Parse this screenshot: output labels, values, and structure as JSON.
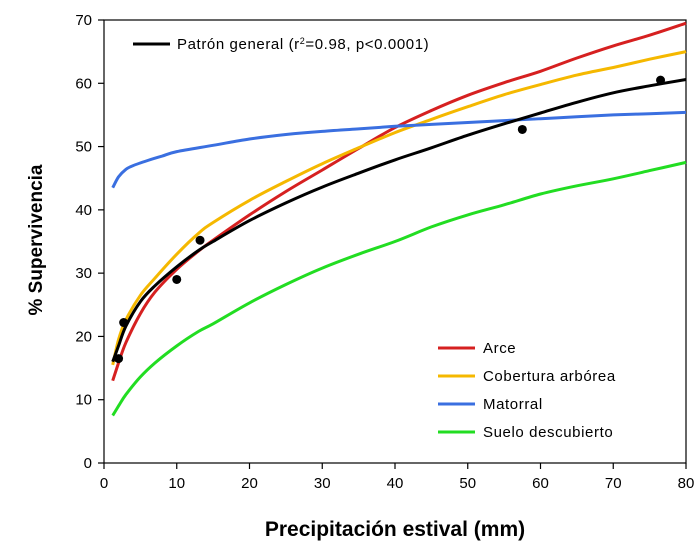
{
  "chart_data": {
    "type": "line",
    "title": "",
    "xlabel": "Precipitación estival (mm)",
    "ylabel": "% Supervivencia",
    "xlim": [
      0,
      80
    ],
    "ylim": [
      0,
      70
    ],
    "xticks": [
      "0",
      "10",
      "20",
      "30",
      "40",
      "50",
      "60",
      "70",
      "80"
    ],
    "yticks": [
      "0",
      "10",
      "20",
      "30",
      "40",
      "50",
      "60",
      "70"
    ],
    "grid": false,
    "fit_legend": {
      "label_prefix": "Patrón general (r",
      "label_sup": "2",
      "label_suffix": "=0.98, p<0.0001)",
      "color": "#000000"
    },
    "points": [
      {
        "x": 2.0,
        "y": 16.5
      },
      {
        "x": 2.7,
        "y": 22.2
      },
      {
        "x": 10.0,
        "y": 29.0
      },
      {
        "x": 13.2,
        "y": 35.2
      },
      {
        "x": 57.5,
        "y": 52.7
      },
      {
        "x": 76.5,
        "y": 60.5
      }
    ],
    "fit": {
      "x": [
        1.2,
        2,
        3,
        5,
        7,
        10,
        13,
        15,
        20,
        25,
        30,
        35,
        40,
        45,
        50,
        55,
        60,
        65,
        70,
        75,
        80
      ],
      "y": [
        16.0,
        18.5,
        21.6,
        25.5,
        28.0,
        31.0,
        33.6,
        35.0,
        38.3,
        41.1,
        43.6,
        45.8,
        47.9,
        49.8,
        51.8,
        53.6,
        55.3,
        57.0,
        58.5,
        59.6,
        60.6
      ]
    },
    "series": [
      {
        "name": "Arce",
        "color": "#d62020",
        "x": [
          1.2,
          2,
          3,
          5,
          7,
          10,
          13,
          15,
          20,
          25,
          30,
          35,
          40,
          45,
          50,
          55,
          60,
          65,
          70,
          75,
          80
        ],
        "y": [
          13.0,
          15.8,
          19.0,
          23.6,
          27.0,
          30.6,
          33.5,
          35.2,
          39.2,
          42.9,
          46.3,
          49.7,
          53.0,
          55.7,
          58.1,
          60.1,
          61.9,
          64.0,
          65.9,
          67.6,
          69.5
        ]
      },
      {
        "name": "Cobertura arbórea",
        "color": "#f5b800",
        "x": [
          1.2,
          2,
          3,
          5,
          7,
          10,
          13,
          15,
          20,
          25,
          30,
          35,
          40,
          45,
          50,
          55,
          60,
          65,
          70,
          75,
          80
        ],
        "y": [
          15.5,
          19.5,
          22.6,
          26.5,
          29.2,
          33.0,
          36.3,
          38.0,
          41.5,
          44.5,
          47.3,
          49.8,
          52.2,
          54.3,
          56.3,
          58.2,
          59.8,
          61.3,
          62.5,
          63.8,
          65.0
        ]
      },
      {
        "name": "Matorral",
        "color": "#3a6fe0",
        "x": [
          1.2,
          2,
          3,
          4,
          6,
          8,
          10,
          15,
          20,
          25,
          30,
          35,
          40,
          45,
          50,
          55,
          60,
          65,
          70,
          75,
          80
        ],
        "y": [
          43.5,
          45.2,
          46.4,
          47.0,
          47.8,
          48.5,
          49.2,
          50.2,
          51.2,
          51.9,
          52.4,
          52.8,
          53.2,
          53.5,
          53.8,
          54.1,
          54.4,
          54.7,
          55.0,
          55.2,
          55.4
        ]
      },
      {
        "name": "Suelo descubierto",
        "color": "#22dd22",
        "x": [
          1.2,
          2,
          3,
          5,
          7,
          10,
          13,
          15,
          20,
          25,
          30,
          35,
          40,
          45,
          50,
          55,
          60,
          65,
          70,
          75,
          80
        ],
        "y": [
          7.5,
          9.0,
          10.8,
          13.6,
          15.8,
          18.5,
          20.8,
          22.0,
          25.3,
          28.2,
          30.8,
          33.0,
          35.0,
          37.3,
          39.2,
          40.8,
          42.5,
          43.8,
          44.9,
          46.2,
          47.5
        ]
      }
    ],
    "legend_position": "bottom-right"
  }
}
